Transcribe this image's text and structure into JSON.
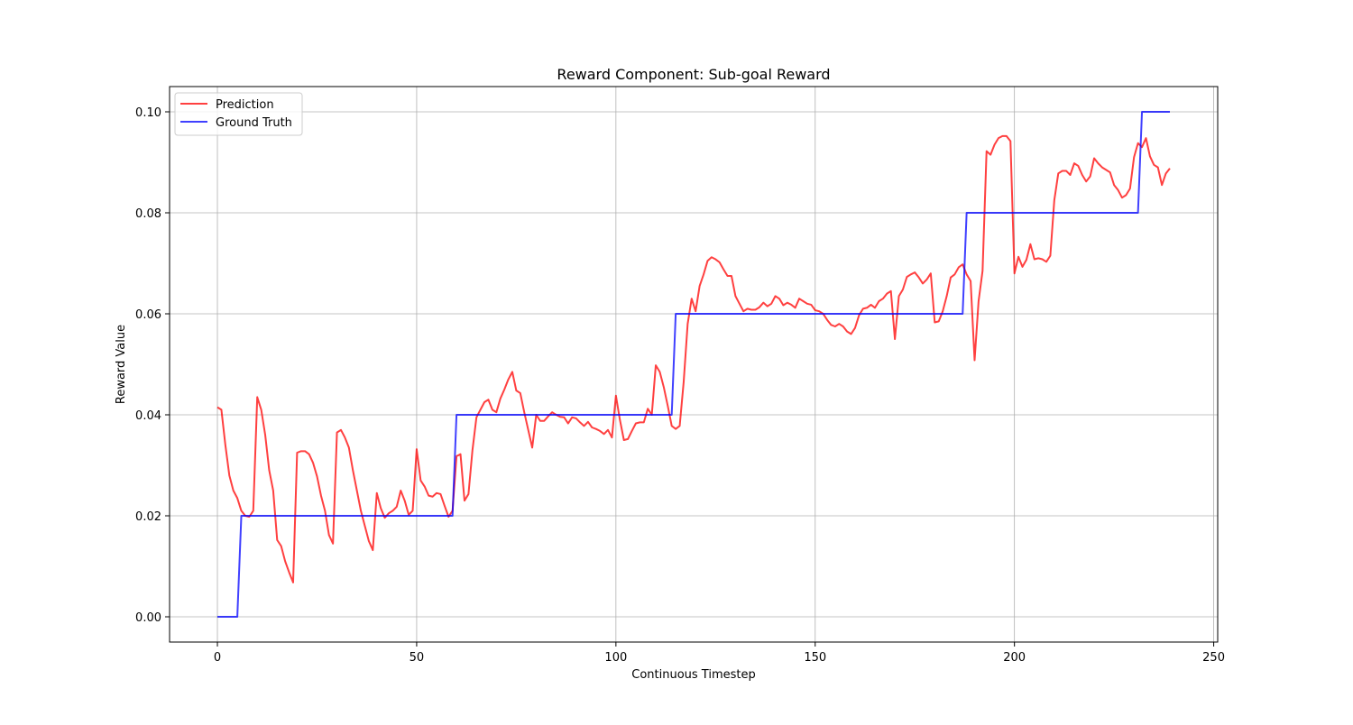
{
  "chart_data": {
    "type": "line",
    "title": "Reward Component: Sub-goal Reward",
    "xlabel": "Continuous Timestep",
    "ylabel": "Reward Value",
    "xlim": [
      -12,
      251
    ],
    "ylim": [
      -0.005,
      0.105
    ],
    "xticks": [
      0,
      50,
      100,
      150,
      200,
      250
    ],
    "xtick_labels": [
      "0",
      "50",
      "100",
      "150",
      "200",
      "250"
    ],
    "yticks": [
      0.0,
      0.02,
      0.04,
      0.06,
      0.08,
      0.1
    ],
    "ytick_labels": [
      "0.00",
      "0.02",
      "0.04",
      "0.06",
      "0.08",
      "0.10"
    ],
    "grid": true,
    "legend_position": "top-left",
    "series": [
      {
        "name": "Prediction",
        "color": "#ff0000",
        "opacity": 0.75,
        "x": [
          0,
          1,
          2,
          3,
          4,
          5,
          6,
          7,
          8,
          9,
          10,
          11,
          12,
          13,
          14,
          15,
          16,
          17,
          18,
          19,
          20,
          21,
          22,
          23,
          24,
          25,
          26,
          27,
          28,
          29,
          30,
          31,
          32,
          33,
          34,
          35,
          36,
          37,
          38,
          39,
          40,
          41,
          42,
          43,
          44,
          45,
          46,
          47,
          48,
          49,
          50,
          51,
          52,
          53,
          54,
          55,
          56,
          57,
          58,
          59,
          60,
          61,
          62,
          63,
          64,
          65,
          66,
          67,
          68,
          69,
          70,
          71,
          72,
          73,
          74,
          75,
          76,
          77,
          78,
          79,
          80,
          81,
          82,
          83,
          84,
          85,
          86,
          87,
          88,
          89,
          90,
          91,
          92,
          93,
          94,
          95,
          96,
          97,
          98,
          99,
          100,
          101,
          102,
          103,
          104,
          105,
          106,
          107,
          108,
          109,
          110,
          111,
          112,
          113,
          114,
          115,
          116,
          117,
          118,
          119,
          120,
          121,
          122,
          123,
          124,
          125,
          126,
          127,
          128,
          129,
          130,
          131,
          132,
          133,
          134,
          135,
          136,
          137,
          138,
          139,
          140,
          141,
          142,
          143,
          144,
          145,
          146,
          147,
          148,
          149,
          150,
          151,
          152,
          153,
          154,
          155,
          156,
          157,
          158,
          159,
          160,
          161,
          162,
          163,
          164,
          165,
          166,
          167,
          168,
          169,
          170,
          171,
          172,
          173,
          174,
          175,
          176,
          177,
          178,
          179,
          180,
          181,
          182,
          183,
          184,
          185,
          186,
          187,
          188,
          189,
          190,
          191,
          192,
          193,
          194,
          195,
          196,
          197,
          198,
          199,
          200,
          201,
          202,
          203,
          204,
          205,
          206,
          207,
          208,
          209,
          210,
          211,
          212,
          213,
          214,
          215,
          216,
          217,
          218,
          219,
          220,
          221,
          222,
          223,
          224,
          225,
          226,
          227,
          228,
          229,
          230,
          231,
          232,
          233,
          234,
          235,
          236,
          237,
          238,
          239
        ],
        "y": [
          0.0415,
          0.041,
          0.034,
          0.028,
          0.025,
          0.0235,
          0.021,
          0.02,
          0.0198,
          0.021,
          0.0435,
          0.041,
          0.036,
          0.029,
          0.025,
          0.0152,
          0.014,
          0.011,
          0.0088,
          0.0068,
          0.0325,
          0.0328,
          0.0328,
          0.0322,
          0.0305,
          0.0278,
          0.024,
          0.021,
          0.0162,
          0.0145,
          0.0365,
          0.037,
          0.0355,
          0.0335,
          0.029,
          0.025,
          0.021,
          0.018,
          0.015,
          0.0132,
          0.0245,
          0.0215,
          0.0196,
          0.0205,
          0.021,
          0.0218,
          0.025,
          0.023,
          0.0202,
          0.021,
          0.0332,
          0.027,
          0.0258,
          0.024,
          0.0238,
          0.0245,
          0.0243,
          0.022,
          0.0198,
          0.021,
          0.0318,
          0.0322,
          0.023,
          0.0243,
          0.033,
          0.0395,
          0.041,
          0.0425,
          0.043,
          0.041,
          0.0405,
          0.0432,
          0.045,
          0.047,
          0.0485,
          0.0448,
          0.0443,
          0.0405,
          0.037,
          0.0335,
          0.04,
          0.0388,
          0.0388,
          0.0397,
          0.0405,
          0.04,
          0.0396,
          0.0395,
          0.0383,
          0.0395,
          0.0393,
          0.0385,
          0.0378,
          0.0386,
          0.0375,
          0.0372,
          0.0368,
          0.0362,
          0.037,
          0.0355,
          0.0438,
          0.039,
          0.035,
          0.0352,
          0.0368,
          0.0383,
          0.0385,
          0.0385,
          0.0412,
          0.04,
          0.0498,
          0.0485,
          0.0455,
          0.0418,
          0.0378,
          0.0372,
          0.0378,
          0.0465,
          0.058,
          0.063,
          0.0605,
          0.0655,
          0.0678,
          0.0705,
          0.0712,
          0.0708,
          0.0702,
          0.0688,
          0.0675,
          0.0675,
          0.0635,
          0.062,
          0.0605,
          0.061,
          0.0608,
          0.0608,
          0.0613,
          0.0622,
          0.0615,
          0.062,
          0.0635,
          0.063,
          0.0617,
          0.0622,
          0.0618,
          0.0612,
          0.063,
          0.0625,
          0.062,
          0.0618,
          0.0607,
          0.0605,
          0.06,
          0.0588,
          0.0578,
          0.0575,
          0.058,
          0.0575,
          0.0565,
          0.056,
          0.0572,
          0.0597,
          0.061,
          0.0612,
          0.0618,
          0.0612,
          0.0625,
          0.063,
          0.064,
          0.0645,
          0.055,
          0.0635,
          0.0648,
          0.0673,
          0.0678,
          0.0682,
          0.0672,
          0.066,
          0.0668,
          0.068,
          0.0583,
          0.0585,
          0.0605,
          0.0635,
          0.0672,
          0.0678,
          0.0692,
          0.0698,
          0.0678,
          0.0665,
          0.0508,
          0.0625,
          0.0685,
          0.0922,
          0.0915,
          0.0935,
          0.0948,
          0.0952,
          0.0952,
          0.0942,
          0.068,
          0.0713,
          0.0693,
          0.0707,
          0.0738,
          0.0708,
          0.071,
          0.0708,
          0.0703,
          0.0715,
          0.0825,
          0.0878,
          0.0883,
          0.0883,
          0.0875,
          0.0898,
          0.0893,
          0.0875,
          0.0862,
          0.0872,
          0.0908,
          0.0898,
          0.089,
          0.0885,
          0.088,
          0.0855,
          0.0845,
          0.083,
          0.0835,
          0.0848,
          0.091,
          0.0938,
          0.093,
          0.0948,
          0.0912,
          0.0895,
          0.089,
          0.0855,
          0.0878,
          0.0888
        ]
      },
      {
        "name": "Ground Truth",
        "color": "#0000ff",
        "opacity": 0.75,
        "x": [
          0,
          5,
          6,
          59,
          60,
          114,
          115,
          187,
          188,
          231,
          232,
          239
        ],
        "y": [
          0.0,
          0.0,
          0.02,
          0.02,
          0.04,
          0.04,
          0.06,
          0.06,
          0.08,
          0.08,
          0.1,
          0.1
        ]
      }
    ]
  }
}
